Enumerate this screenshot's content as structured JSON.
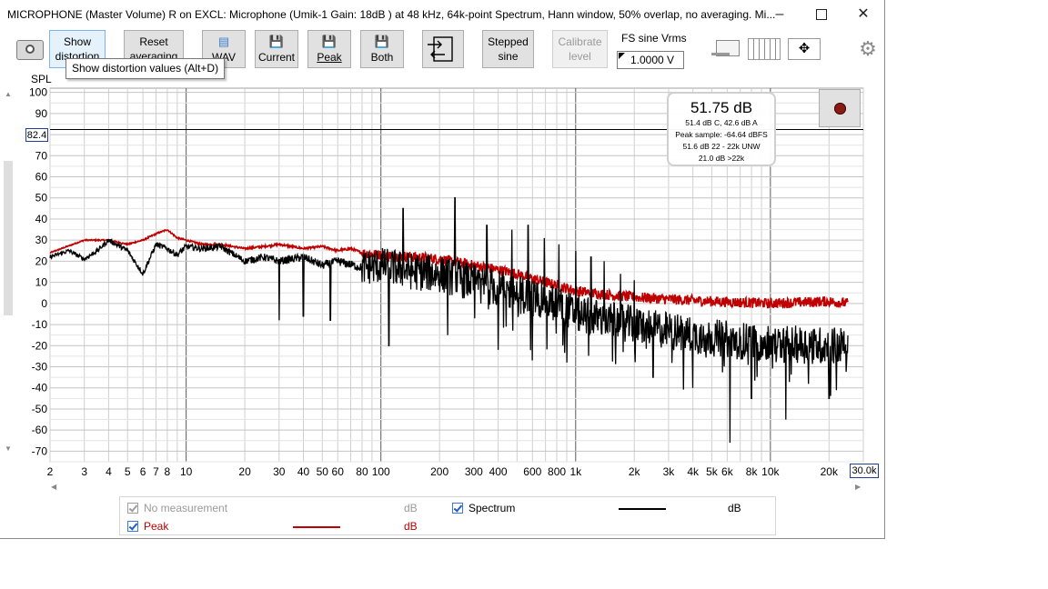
{
  "window": {
    "title": "MICROPHONE (Master Volume) R on EXCL: Microphone (Umik-1  Gain: 18dB  ) at 48 kHz, 64k-point Spectrum, Hann window, 50% overlap, no averaging. Mi...",
    "controls": [
      "minimize",
      "maximize",
      "close"
    ]
  },
  "toolbar": {
    "show_distortion": "Show distortion",
    "reset_averaging": "Reset averaging",
    "wav": "WAV",
    "current": "Current",
    "peak": "Peak",
    "both": "Both",
    "stepped_sine": "Stepped sine",
    "calibrate_level": "Calibrate level",
    "fs_label": "FS sine Vrms",
    "fs_value": "1.0000 V"
  },
  "tooltip": "Show distortion values (Alt+D)",
  "readout": {
    "big": "51.75 dB",
    "line1": "51.4 dB C, 42.6 dB A",
    "line2": "Peak sample: -64.64 dBFS",
    "line3": "51.6 dB 22 - 22k UNW",
    "line4": "21.0 dB >22k"
  },
  "y_cursor_value": "82.4",
  "x_max_value": "30.0k",
  "legend": {
    "no_measurement": "No measurement",
    "no_measurement_unit": "dB",
    "peak": "Peak",
    "peak_unit": "dB",
    "spectrum": "Spectrum",
    "spectrum_unit": "dB"
  },
  "chart_data": {
    "type": "line",
    "ylabel": "SPL",
    "xscale": "log",
    "xlim": [
      2,
      30000
    ],
    "ylim": [
      -75,
      102
    ],
    "grid": true,
    "cursor_y": 82.4,
    "yticks": [
      100,
      90,
      80,
      70,
      60,
      50,
      40,
      30,
      20,
      10,
      0,
      -10,
      -20,
      -30,
      -40,
      -50,
      -60,
      -70
    ],
    "ytick_labels": [
      "100",
      "90",
      "",
      "70",
      "60",
      "50",
      "40",
      "30",
      "20",
      "10",
      "0",
      "-10",
      "-20",
      "-30",
      "-40",
      "-50",
      "-60",
      "-70"
    ],
    "xticks": [
      2,
      3,
      4,
      5,
      6,
      7,
      8,
      10,
      20,
      30,
      40,
      50,
      60,
      80,
      100,
      200,
      300,
      400,
      600,
      800,
      1000,
      2000,
      3000,
      4000,
      5000,
      6000,
      8000,
      10000,
      20000
    ],
    "xtick_labels": [
      "2",
      "3",
      "4",
      "5",
      "6",
      "7",
      "8",
      "10",
      "20",
      "30",
      "40",
      "50",
      "60",
      "80",
      "100",
      "200",
      "300",
      "400",
      "600",
      "800",
      "1k",
      "2k",
      "3k",
      "4k",
      "5k",
      "6k",
      "8k",
      "10k",
      "20k"
    ],
    "series": [
      {
        "name": "Peak",
        "color": "#c00000",
        "points": [
          [
            2,
            24
          ],
          [
            3,
            30
          ],
          [
            4,
            30
          ],
          [
            5,
            28
          ],
          [
            6,
            30
          ],
          [
            7,
            33
          ],
          [
            8,
            35
          ],
          [
            9,
            31
          ],
          [
            10,
            30
          ],
          [
            12,
            28
          ],
          [
            15,
            28
          ],
          [
            20,
            26
          ],
          [
            25,
            27
          ],
          [
            30,
            28
          ],
          [
            40,
            26
          ],
          [
            50,
            27
          ],
          [
            60,
            25
          ],
          [
            70,
            26
          ],
          [
            80,
            24
          ],
          [
            100,
            23
          ],
          [
            150,
            22
          ],
          [
            200,
            21
          ],
          [
            300,
            18
          ],
          [
            400,
            16
          ],
          [
            500,
            14
          ],
          [
            700,
            10
          ],
          [
            1000,
            6
          ],
          [
            1500,
            4
          ],
          [
            2000,
            3
          ],
          [
            3000,
            2
          ],
          [
            5000,
            1
          ],
          [
            10000,
            0
          ],
          [
            20000,
            1
          ],
          [
            25000,
            0
          ]
        ]
      },
      {
        "name": "Spectrum",
        "color": "#000000",
        "points": [
          [
            2,
            22
          ],
          [
            2.5,
            25
          ],
          [
            3,
            21
          ],
          [
            3.5,
            25
          ],
          [
            4,
            30
          ],
          [
            5,
            25
          ],
          [
            6,
            14
          ],
          [
            7,
            28
          ],
          [
            8,
            26
          ],
          [
            9,
            23
          ],
          [
            10,
            27
          ],
          [
            12,
            26
          ],
          [
            15,
            27
          ],
          [
            20,
            20
          ],
          [
            25,
            22
          ],
          [
            30,
            20
          ],
          [
            40,
            22
          ],
          [
            50,
            18
          ],
          [
            60,
            20
          ],
          [
            80,
            17
          ],
          [
            100,
            18
          ],
          [
            150,
            15
          ],
          [
            200,
            14
          ],
          [
            300,
            10
          ],
          [
            400,
            7
          ],
          [
            600,
            3
          ],
          [
            800,
            0
          ],
          [
            1000,
            -5
          ],
          [
            2000,
            -10
          ],
          [
            4000,
            -15
          ],
          [
            6000,
            -17
          ],
          [
            10000,
            -19
          ],
          [
            20000,
            -20
          ],
          [
            25000,
            -20
          ]
        ],
        "peaks": [
          [
            130,
            45
          ],
          [
            240,
            50
          ],
          [
            350,
            37
          ],
          [
            470,
            35
          ],
          [
            570,
            37
          ],
          [
            690,
            31
          ],
          [
            820,
            28
          ],
          [
            1000,
            25
          ],
          [
            1200,
            22
          ],
          [
            1400,
            20
          ],
          [
            1700,
            14
          ],
          [
            2000,
            11
          ]
        ],
        "dips": [
          [
            30,
            -8
          ],
          [
            40,
            -6
          ],
          [
            55,
            -8
          ],
          [
            110,
            -20
          ],
          [
            220,
            -15
          ],
          [
            400,
            -22
          ],
          [
            600,
            -27
          ],
          [
            900,
            -28
          ],
          [
            1400,
            -30
          ],
          [
            2500,
            -35
          ],
          [
            4000,
            -40
          ],
          [
            6200,
            -66
          ],
          [
            8000,
            -45
          ],
          [
            12000,
            -55
          ],
          [
            20000,
            -45
          ]
        ]
      }
    ]
  }
}
